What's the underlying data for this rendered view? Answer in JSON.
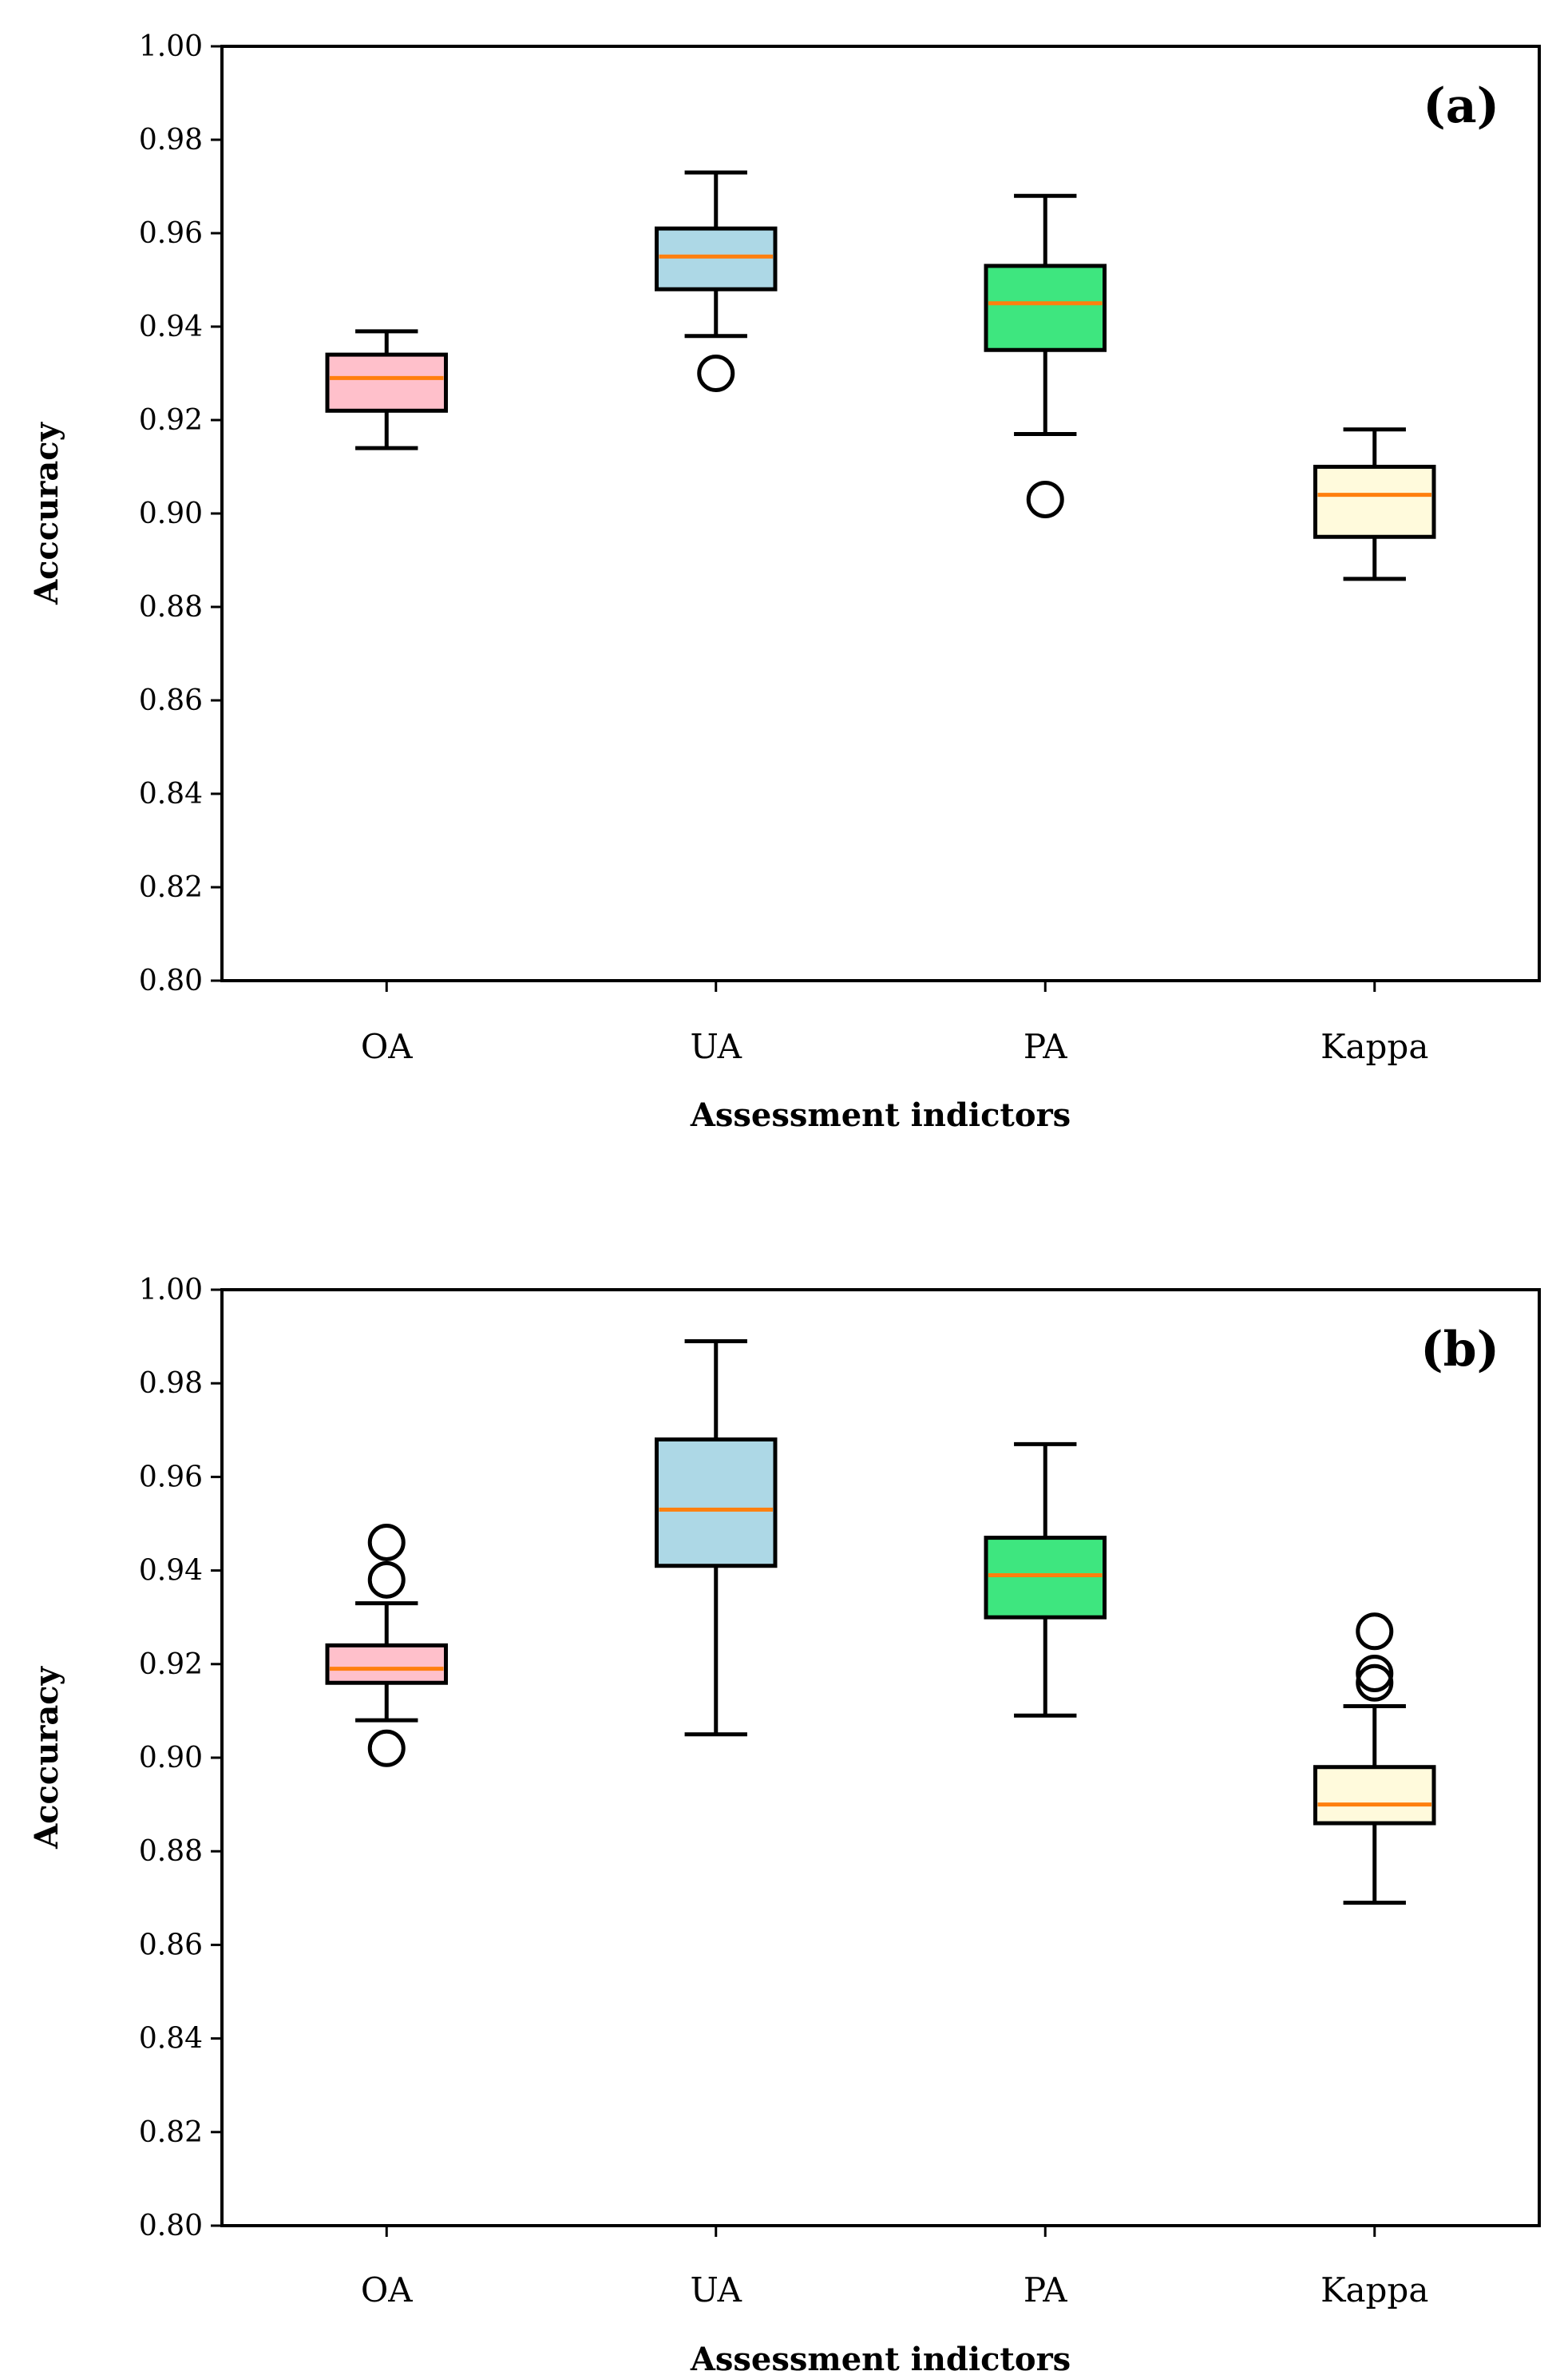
{
  "chart_data": [
    {
      "type": "boxplot",
      "panel_label": "(a)",
      "xlabel": "Assessment indictors",
      "ylabel": "Acccuracy",
      "ylim": [
        0.8,
        1.0
      ],
      "yticks": [
        "0.80",
        "0.82",
        "0.84",
        "0.86",
        "0.88",
        "0.90",
        "0.92",
        "0.94",
        "0.96",
        "0.98",
        "1.00"
      ],
      "categories": [
        "OA",
        "UA",
        "PA",
        "Kappa"
      ],
      "boxes": [
        {
          "name": "OA",
          "whisker_low": 0.914,
          "q1": 0.922,
          "median": 0.929,
          "q3": 0.934,
          "whisker_high": 0.939,
          "outliers": [],
          "color": "#ffc0cb"
        },
        {
          "name": "UA",
          "whisker_low": 0.938,
          "q1": 0.948,
          "median": 0.955,
          "q3": 0.961,
          "whisker_high": 0.973,
          "outliers": [
            0.93
          ],
          "color": "#add8e6"
        },
        {
          "name": "PA",
          "whisker_low": 0.917,
          "q1": 0.935,
          "median": 0.945,
          "q3": 0.953,
          "whisker_high": 0.968,
          "outliers": [
            0.903
          ],
          "color": "#3ee67f"
        },
        {
          "name": "Kappa",
          "whisker_low": 0.886,
          "q1": 0.895,
          "median": 0.904,
          "q3": 0.91,
          "whisker_high": 0.918,
          "outliers": [],
          "color": "#fffadc"
        }
      ],
      "median_color": "#ff7f0e"
    },
    {
      "type": "boxplot",
      "panel_label": "(b)",
      "xlabel": "Assessment indictors",
      "ylabel": "Acccuracy",
      "ylim": [
        0.8,
        1.0
      ],
      "yticks": [
        "0.80",
        "0.82",
        "0.84",
        "0.86",
        "0.88",
        "0.90",
        "0.92",
        "0.94",
        "0.96",
        "0.98",
        "1.00"
      ],
      "categories": [
        "OA",
        "UA",
        "PA",
        "Kappa"
      ],
      "boxes": [
        {
          "name": "OA",
          "whisker_low": 0.908,
          "q1": 0.916,
          "median": 0.919,
          "q3": 0.924,
          "whisker_high": 0.933,
          "outliers": [
            0.946,
            0.938,
            0.902
          ],
          "color": "#ffc0cb"
        },
        {
          "name": "UA",
          "whisker_low": 0.905,
          "q1": 0.941,
          "median": 0.953,
          "q3": 0.968,
          "whisker_high": 0.989,
          "outliers": [],
          "color": "#add8e6"
        },
        {
          "name": "PA",
          "whisker_low": 0.909,
          "q1": 0.93,
          "median": 0.939,
          "q3": 0.947,
          "whisker_high": 0.967,
          "outliers": [],
          "color": "#3ee67f"
        },
        {
          "name": "Kappa",
          "whisker_low": 0.869,
          "q1": 0.886,
          "median": 0.89,
          "q3": 0.898,
          "whisker_high": 0.911,
          "outliers": [
            0.927,
            0.918,
            0.916
          ],
          "color": "#fffadc"
        }
      ],
      "median_color": "#ff7f0e"
    }
  ]
}
